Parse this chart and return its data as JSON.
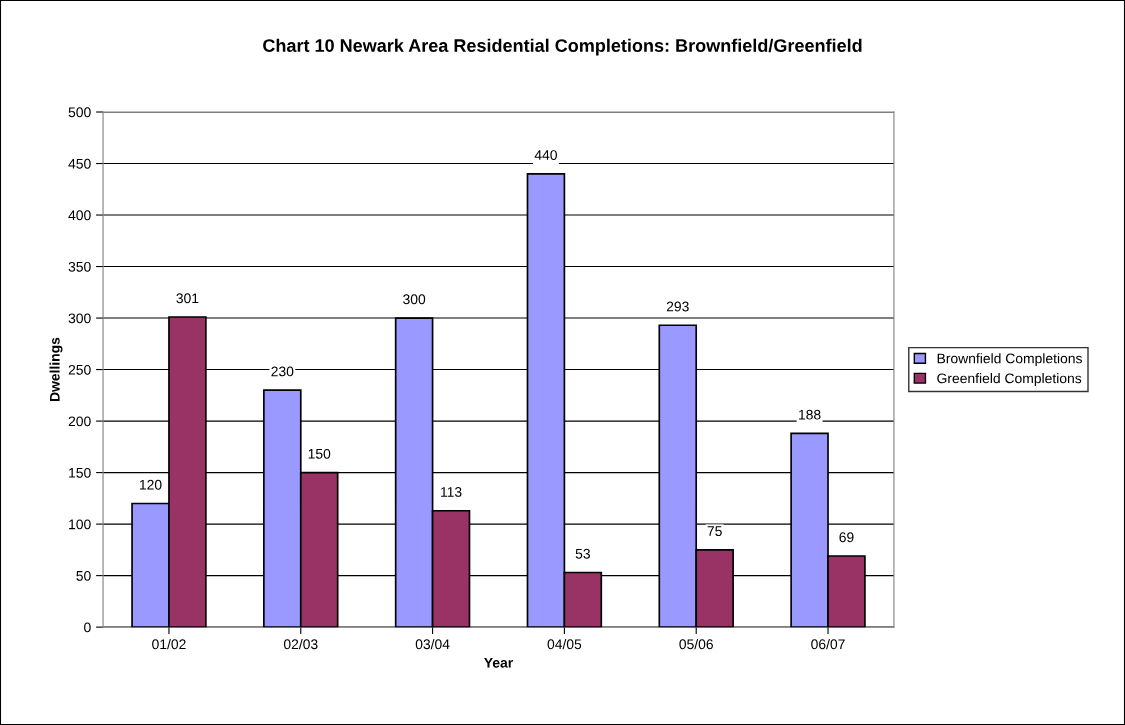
{
  "chart_data": {
    "type": "bar",
    "title": "Chart 10 Newark Area Residential Completions: Brownfield/Greenfield",
    "xlabel": "Year",
    "ylabel": "Dwellings",
    "categories": [
      "01/02",
      "02/03",
      "03/04",
      "04/05",
      "05/06",
      "06/07"
    ],
    "series": [
      {
        "name": "Brownfield Completions",
        "color": "#9999ff",
        "values": [
          120,
          230,
          300,
          440,
          293,
          188
        ]
      },
      {
        "name": "Greenfield Completions",
        "color": "#993366",
        "values": [
          301,
          150,
          113,
          53,
          75,
          69
        ]
      }
    ],
    "ylim": [
      0,
      500
    ],
    "yticks": [
      0,
      50,
      100,
      150,
      200,
      250,
      300,
      350,
      400,
      450,
      500
    ],
    "grid": "y",
    "legend": "right",
    "data_labels": true
  }
}
